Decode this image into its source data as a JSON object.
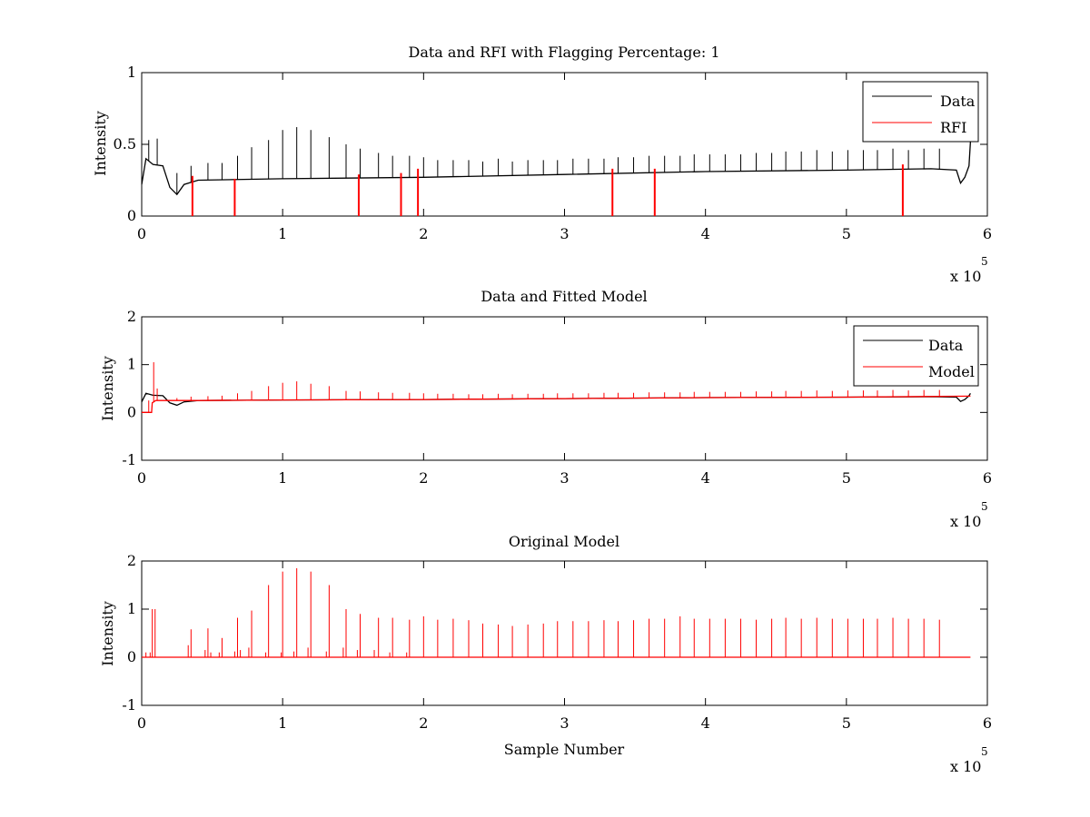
{
  "colors": {
    "data": "#000000",
    "rfi": "#ff0000",
    "model": "#ff0000",
    "axes": "#000000",
    "background": "#ffffff"
  },
  "chart_data": [
    {
      "type": "line",
      "title": "Data and RFI with Flagging Percentage: 1",
      "xlabel": "",
      "ylabel": "Intensity",
      "xlim": [
        0,
        600000
      ],
      "ylim": [
        0,
        1
      ],
      "xticks": [
        0,
        1,
        2,
        3,
        4,
        5,
        6
      ],
      "yticks": [
        0,
        0.5,
        1
      ],
      "ytick_labels": [
        "0",
        "0.5",
        "1"
      ],
      "x_exponent": {
        "base": "x 10",
        "power": "5"
      },
      "legend": {
        "position": "top-right",
        "entries": [
          "Data",
          "RFI"
        ]
      },
      "series": [
        {
          "name": "Data",
          "color": "#000000",
          "baseline": [
            [
              0,
              0.22
            ],
            [
              3000,
              0.4
            ],
            [
              8000,
              0.36
            ],
            [
              15000,
              0.35
            ],
            [
              20000,
              0.2
            ],
            [
              25000,
              0.15
            ],
            [
              30000,
              0.22
            ],
            [
              40000,
              0.25
            ],
            [
              100000,
              0.26
            ],
            [
              200000,
              0.27
            ],
            [
              300000,
              0.29
            ],
            [
              400000,
              0.31
            ],
            [
              500000,
              0.32
            ],
            [
              560000,
              0.33
            ],
            [
              578000,
              0.32
            ],
            [
              581000,
              0.23
            ],
            [
              584000,
              0.27
            ],
            [
              587000,
              0.35
            ],
            [
              588000,
              0.52
            ]
          ],
          "spikes": [
            [
              5000,
              0.53
            ],
            [
              11000,
              0.54
            ],
            [
              25000,
              0.3
            ],
            [
              35000,
              0.35
            ],
            [
              47000,
              0.37
            ],
            [
              57000,
              0.37
            ],
            [
              68000,
              0.42
            ],
            [
              78000,
              0.48
            ],
            [
              90000,
              0.53
            ],
            [
              100000,
              0.6
            ],
            [
              110000,
              0.62
            ],
            [
              120000,
              0.6
            ],
            [
              133000,
              0.55
            ],
            [
              145000,
              0.5
            ],
            [
              155000,
              0.47
            ],
            [
              168000,
              0.44
            ],
            [
              178000,
              0.42
            ],
            [
              190000,
              0.42
            ],
            [
              200000,
              0.41
            ],
            [
              210000,
              0.39
            ],
            [
              221000,
              0.39
            ],
            [
              232000,
              0.39
            ],
            [
              242000,
              0.38
            ],
            [
              253000,
              0.4
            ],
            [
              263000,
              0.38
            ],
            [
              274000,
              0.39
            ],
            [
              285000,
              0.39
            ],
            [
              295000,
              0.39
            ],
            [
              306000,
              0.4
            ],
            [
              317000,
              0.4
            ],
            [
              328000,
              0.4
            ],
            [
              338000,
              0.41
            ],
            [
              349000,
              0.41
            ],
            [
              360000,
              0.42
            ],
            [
              371000,
              0.42
            ],
            [
              382000,
              0.42
            ],
            [
              392000,
              0.43
            ],
            [
              403000,
              0.43
            ],
            [
              414000,
              0.43
            ],
            [
              425000,
              0.43
            ],
            [
              436000,
              0.44
            ],
            [
              447000,
              0.44
            ],
            [
              457000,
              0.45
            ],
            [
              468000,
              0.45
            ],
            [
              479000,
              0.46
            ],
            [
              490000,
              0.45
            ],
            [
              501000,
              0.46
            ],
            [
              512000,
              0.46
            ],
            [
              522000,
              0.46
            ],
            [
              533000,
              0.47
            ],
            [
              544000,
              0.46
            ],
            [
              555000,
              0.47
            ],
            [
              566000,
              0.47
            ]
          ]
        },
        {
          "name": "RFI",
          "color": "#ff0000",
          "marks": [
            [
              36000,
              0.28
            ],
            [
              66000,
              0.26
            ],
            [
              154000,
              0.29
            ],
            [
              184000,
              0.3
            ],
            [
              196000,
              0.33
            ],
            [
              334000,
              0.33
            ],
            [
              364000,
              0.33
            ],
            [
              540000,
              0.36
            ]
          ]
        }
      ]
    },
    {
      "type": "line",
      "title": "Data and Fitted Model",
      "xlabel": "",
      "ylabel": "Intensity",
      "xlim": [
        0,
        600000
      ],
      "ylim": [
        -1,
        2
      ],
      "xticks": [
        0,
        1,
        2,
        3,
        4,
        5,
        6
      ],
      "yticks": [
        -1,
        0,
        1,
        2
      ],
      "ytick_labels": [
        "-1",
        "0",
        "1",
        "2"
      ],
      "x_exponent": {
        "base": "x 10",
        "power": "5"
      },
      "legend": {
        "position": "top-right",
        "entries": [
          "Data",
          "Model"
        ]
      },
      "series": [
        {
          "name": "Data",
          "color": "#000000",
          "baseline": [
            [
              0,
              0.22
            ],
            [
              3000,
              0.4
            ],
            [
              8000,
              0.36
            ],
            [
              15000,
              0.35
            ],
            [
              20000,
              0.2
            ],
            [
              25000,
              0.15
            ],
            [
              30000,
              0.22
            ],
            [
              40000,
              0.25
            ],
            [
              100000,
              0.26
            ],
            [
              200000,
              0.27
            ],
            [
              300000,
              0.29
            ],
            [
              400000,
              0.31
            ],
            [
              500000,
              0.32
            ],
            [
              560000,
              0.33
            ],
            [
              578000,
              0.32
            ],
            [
              581000,
              0.23
            ],
            [
              584000,
              0.27
            ],
            [
              587000,
              0.35
            ],
            [
              588000,
              0.4
            ]
          ]
        },
        {
          "name": "Model",
          "color": "#ff0000",
          "baseline": [
            [
              0,
              0.0
            ],
            [
              7000,
              0.0
            ],
            [
              7500,
              0.2
            ],
            [
              10000,
              0.25
            ],
            [
              40000,
              0.25
            ],
            [
              100000,
              0.26
            ],
            [
              200000,
              0.27
            ],
            [
              300000,
              0.29
            ],
            [
              400000,
              0.31
            ],
            [
              500000,
              0.32
            ],
            [
              588000,
              0.34
            ]
          ],
          "spikes": [
            [
              5000,
              0.25
            ],
            [
              8500,
              1.05
            ],
            [
              11000,
              0.5
            ],
            [
              25000,
              0.3
            ],
            [
              35000,
              0.33
            ],
            [
              47000,
              0.34
            ],
            [
              57000,
              0.35
            ],
            [
              68000,
              0.4
            ],
            [
              78000,
              0.45
            ],
            [
              90000,
              0.55
            ],
            [
              100000,
              0.62
            ],
            [
              110000,
              0.65
            ],
            [
              120000,
              0.6
            ],
            [
              133000,
              0.55
            ],
            [
              145000,
              0.45
            ],
            [
              155000,
              0.44
            ],
            [
              168000,
              0.42
            ],
            [
              178000,
              0.41
            ],
            [
              190000,
              0.41
            ],
            [
              200000,
              0.4
            ],
            [
              210000,
              0.39
            ],
            [
              221000,
              0.39
            ],
            [
              232000,
              0.38
            ],
            [
              242000,
              0.38
            ],
            [
              253000,
              0.39
            ],
            [
              263000,
              0.38
            ],
            [
              274000,
              0.39
            ],
            [
              285000,
              0.39
            ],
            [
              295000,
              0.4
            ],
            [
              306000,
              0.4
            ],
            [
              317000,
              0.4
            ],
            [
              328000,
              0.41
            ],
            [
              338000,
              0.41
            ],
            [
              349000,
              0.41
            ],
            [
              360000,
              0.42
            ],
            [
              371000,
              0.42
            ],
            [
              382000,
              0.42
            ],
            [
              392000,
              0.43
            ],
            [
              403000,
              0.43
            ],
            [
              414000,
              0.43
            ],
            [
              425000,
              0.43
            ],
            [
              436000,
              0.44
            ],
            [
              447000,
              0.44
            ],
            [
              457000,
              0.45
            ],
            [
              468000,
              0.45
            ],
            [
              479000,
              0.46
            ],
            [
              490000,
              0.45
            ],
            [
              501000,
              0.46
            ],
            [
              512000,
              0.46
            ],
            [
              522000,
              0.46
            ],
            [
              533000,
              0.47
            ],
            [
              544000,
              0.46
            ],
            [
              555000,
              0.47
            ],
            [
              566000,
              0.47
            ]
          ]
        }
      ]
    },
    {
      "type": "line",
      "title": "Original Model",
      "xlabel": "Sample Number",
      "ylabel": "Intensity",
      "xlim": [
        0,
        600000
      ],
      "ylim": [
        -1,
        2
      ],
      "xticks": [
        0,
        1,
        2,
        3,
        4,
        5,
        6
      ],
      "yticks": [
        -1,
        0,
        1,
        2
      ],
      "ytick_labels": [
        "-1",
        "0",
        "1",
        "2"
      ],
      "x_exponent": {
        "base": "x 10",
        "power": "5"
      },
      "series": [
        {
          "name": "Original Model",
          "color": "#ff0000",
          "baseline": [
            [
              0,
              0
            ],
            [
              588000,
              0
            ]
          ],
          "spikes": [
            [
              3000,
              0.1
            ],
            [
              6000,
              0.1
            ],
            [
              7500,
              1.0
            ],
            [
              9500,
              1.0
            ],
            [
              33000,
              0.25
            ],
            [
              35000,
              0.58
            ],
            [
              45000,
              0.15
            ],
            [
              47000,
              0.6
            ],
            [
              49000,
              0.1
            ],
            [
              55000,
              0.1
            ],
            [
              57000,
              0.4
            ],
            [
              66000,
              0.12
            ],
            [
              68000,
              0.82
            ],
            [
              70000,
              0.15
            ],
            [
              76000,
              0.2
            ],
            [
              78000,
              0.97
            ],
            [
              88000,
              0.1
            ],
            [
              90000,
              1.5
            ],
            [
              99000,
              0.1
            ],
            [
              100000,
              1.78
            ],
            [
              108000,
              0.12
            ],
            [
              110000,
              1.85
            ],
            [
              118000,
              0.2
            ],
            [
              120000,
              1.78
            ],
            [
              131000,
              0.12
            ],
            [
              133000,
              1.5
            ],
            [
              143000,
              0.2
            ],
            [
              145000,
              1.0
            ],
            [
              153000,
              0.15
            ],
            [
              155000,
              0.9
            ],
            [
              165000,
              0.15
            ],
            [
              168000,
              0.82
            ],
            [
              176000,
              0.1
            ],
            [
              178000,
              0.82
            ],
            [
              188000,
              0.1
            ],
            [
              190000,
              0.78
            ],
            [
              200000,
              0.85
            ],
            [
              210000,
              0.78
            ],
            [
              221000,
              0.8
            ],
            [
              232000,
              0.77
            ],
            [
              242000,
              0.7
            ],
            [
              253000,
              0.68
            ],
            [
              263000,
              0.65
            ],
            [
              274000,
              0.68
            ],
            [
              285000,
              0.7
            ],
            [
              295000,
              0.75
            ],
            [
              306000,
              0.75
            ],
            [
              317000,
              0.75
            ],
            [
              328000,
              0.77
            ],
            [
              338000,
              0.75
            ],
            [
              349000,
              0.77
            ],
            [
              360000,
              0.8
            ],
            [
              371000,
              0.8
            ],
            [
              382000,
              0.85
            ],
            [
              392000,
              0.8
            ],
            [
              403000,
              0.8
            ],
            [
              414000,
              0.8
            ],
            [
              425000,
              0.8
            ],
            [
              436000,
              0.78
            ],
            [
              447000,
              0.8
            ],
            [
              457000,
              0.82
            ],
            [
              468000,
              0.8
            ],
            [
              479000,
              0.82
            ],
            [
              490000,
              0.8
            ],
            [
              501000,
              0.8
            ],
            [
              512000,
              0.8
            ],
            [
              522000,
              0.8
            ],
            [
              533000,
              0.82
            ],
            [
              544000,
              0.8
            ],
            [
              555000,
              0.8
            ],
            [
              566000,
              0.78
            ]
          ]
        }
      ]
    }
  ]
}
